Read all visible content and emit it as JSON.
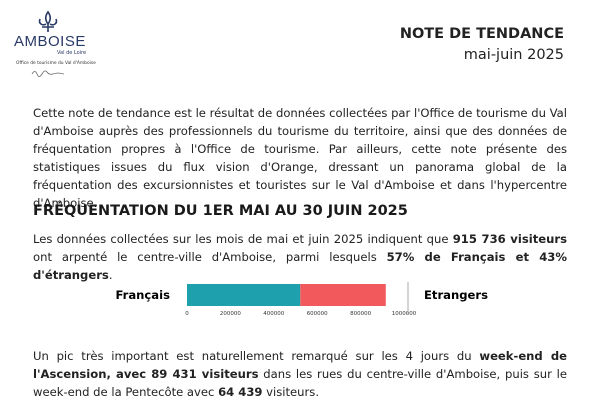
{
  "header": {
    "logo": {
      "name": "AMBOISE",
      "tagline": "Val de Loire",
      "office": "Office de tourisme du Val d'Amboise"
    },
    "title": "NOTE DE TENDANCE",
    "period": "mai-juin 2025"
  },
  "intro": [
    {
      "text": "Cette note de tendance est le résultat de données collectées par l'Office de tourisme du Val d'Amboise auprès des professionnels du tourisme du territoire, ainsi que des données de fréquentation propres à l'Office de tourisme. Par ailleurs, cette note présente des statistiques issues du flux vision d'Orange, dressant un panorama global de la fréquentation des excursionnistes et touristes sur le Val d'Amboise et dans l'hypercentre d'Amboise.",
      "bold": false
    }
  ],
  "section_title": "FRÉQUENTATION DU 1ER MAI AU 30 JUIN 2025",
  "paragraph_1": [
    {
      "text": "Les données collectées sur les mois de mai et juin 2025 indiquent que ",
      "bold": false
    },
    {
      "text": "915 736 visiteurs",
      "bold": true
    },
    {
      "text": " ont arpenté le centre-ville d'Amboise, parmi lesquels ",
      "bold": false
    },
    {
      "text": "57% de Français et 43% d'étrangers",
      "bold": true
    },
    {
      "text": ".",
      "bold": false
    }
  ],
  "chart_data": {
    "type": "stacked-bar-horizontal",
    "series": [
      {
        "name": "Français",
        "color": "#1ea0ad",
        "values": [
          522000
        ]
      },
      {
        "name": "Etrangers",
        "color": "#f2595d",
        "values": [
          394000
        ]
      }
    ],
    "xlim": [
      0,
      1000000
    ],
    "xticks": [
      0,
      200000,
      400000,
      600000,
      800000,
      1000000
    ]
  },
  "paragraph_2": [
    {
      "text": "Un pic très important est naturellement remarqué sur les 4 jours du ",
      "bold": false
    },
    {
      "text": "week-end de l'Ascension, avec 89 431 visiteurs",
      "bold": true
    },
    {
      "text": " dans les rues du centre-ville d'Amboise, puis sur le week-end de la Pentecôte avec ",
      "bold": false
    },
    {
      "text": "64 439",
      "bold": true
    },
    {
      "text": " visiteurs.",
      "bold": false
    }
  ]
}
